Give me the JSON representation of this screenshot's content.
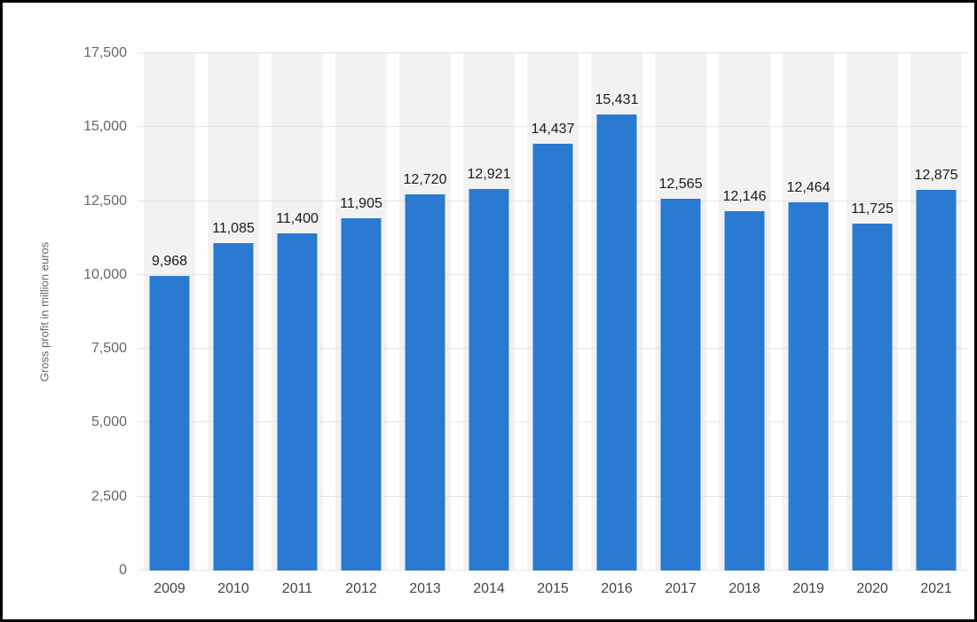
{
  "chart_data": {
    "type": "bar",
    "title": "",
    "xlabel": "",
    "ylabel": "Gross profit in million euros",
    "categories": [
      "2009",
      "2010",
      "2011",
      "2012",
      "2013",
      "2014",
      "2015",
      "2016",
      "2017",
      "2018",
      "2019",
      "2020",
      "2021"
    ],
    "values": [
      9968,
      11085,
      11400,
      11905,
      12720,
      12921,
      14437,
      15431,
      12565,
      12146,
      12464,
      11725,
      12875
    ],
    "value_labels": [
      "9,968",
      "11,085",
      "11,400",
      "11,905",
      "12,720",
      "12,921",
      "14,437",
      "15,431",
      "12,565",
      "12,146",
      "12,464",
      "11,725",
      "12,875"
    ],
    "ylim": [
      0,
      17500
    ],
    "yticks": [
      0,
      2500,
      5000,
      7500,
      10000,
      12500,
      15000,
      17500
    ],
    "ytick_labels": [
      "0",
      "2,500",
      "5,000",
      "7,500",
      "10,000",
      "12,500",
      "15,000",
      "17,500"
    ],
    "grid": "horizontal",
    "legend": "none",
    "bar_color": "#2a7ad2",
    "stripe_color": "#f2f2f2",
    "gridline_color": "#e4e4e4",
    "frame_border_color": "#000000"
  }
}
